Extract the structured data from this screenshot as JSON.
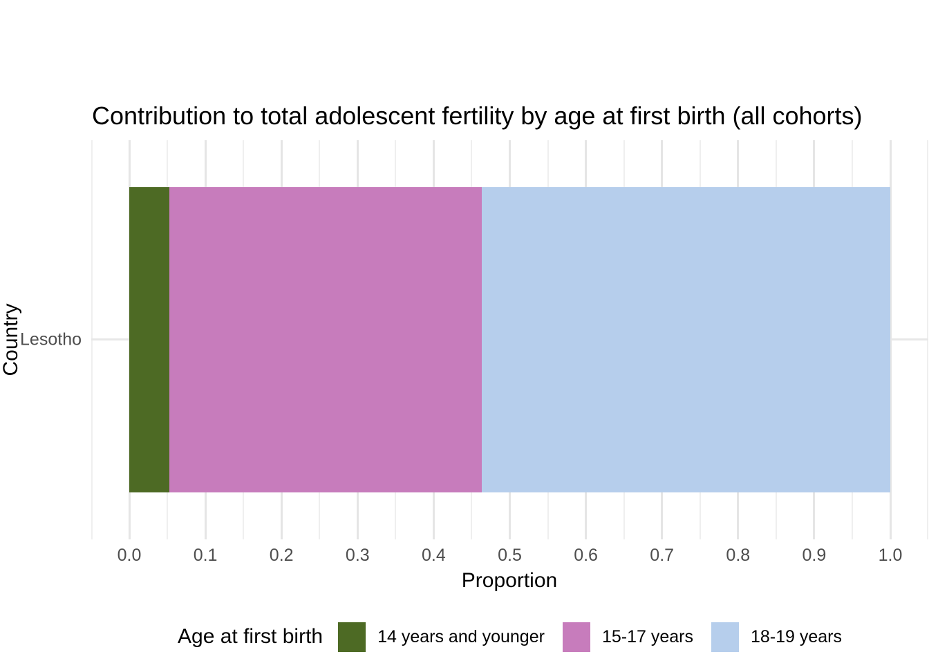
{
  "chart_data": {
    "type": "bar",
    "orientation": "horizontal",
    "stacked": true,
    "title": "Contribution to total adolescent fertility by age at first birth (all cohorts)",
    "xlabel": "Proportion",
    "ylabel": "Country",
    "categories": [
      "Lesotho"
    ],
    "series": [
      {
        "name": "14 years and younger",
        "values": [
          0.053
        ],
        "color": "#4D6A24"
      },
      {
        "name": "15-17 years",
        "values": [
          0.41
        ],
        "color": "#C77CBC"
      },
      {
        "name": "18-19 years",
        "values": [
          0.537
        ],
        "color": "#B6CEEC"
      }
    ],
    "xlim": [
      0,
      1
    ],
    "x_ticks": [
      0.0,
      0.1,
      0.2,
      0.3,
      0.4,
      0.5,
      0.6,
      0.7,
      0.8,
      0.9,
      1.0
    ],
    "x_tick_labels": [
      "0.0",
      "0.1",
      "0.2",
      "0.3",
      "0.4",
      "0.5",
      "0.6",
      "0.7",
      "0.8",
      "0.9",
      "1.0"
    ],
    "grid": "major-and-minor-vertical",
    "legend": {
      "title": "Age at first birth",
      "position": "bottom"
    }
  },
  "style_colors": {
    "background": "#FFFFFF",
    "grid_major": "#E5E5E5",
    "grid_minor": "#EFEFEF",
    "tick_label": "#4D4D4D",
    "text": "#000000"
  }
}
